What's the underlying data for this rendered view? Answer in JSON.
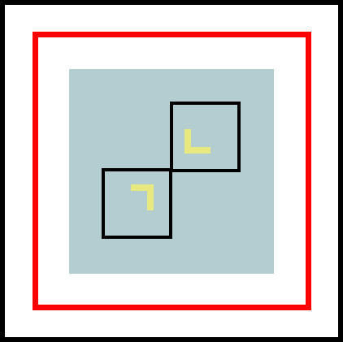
{
  "colors": {
    "background": "#ffffff",
    "outer_border": "#000000",
    "inner_border": "#ff0000",
    "board": "#b4cdd0",
    "tile_outline": "#000000",
    "marker": "#e8e880"
  },
  "board": {
    "tiles": [
      {
        "id": "tile-upper-right",
        "marker": "corner-bottom-left"
      },
      {
        "id": "tile-lower-left",
        "marker": "corner-top-right"
      }
    ]
  }
}
